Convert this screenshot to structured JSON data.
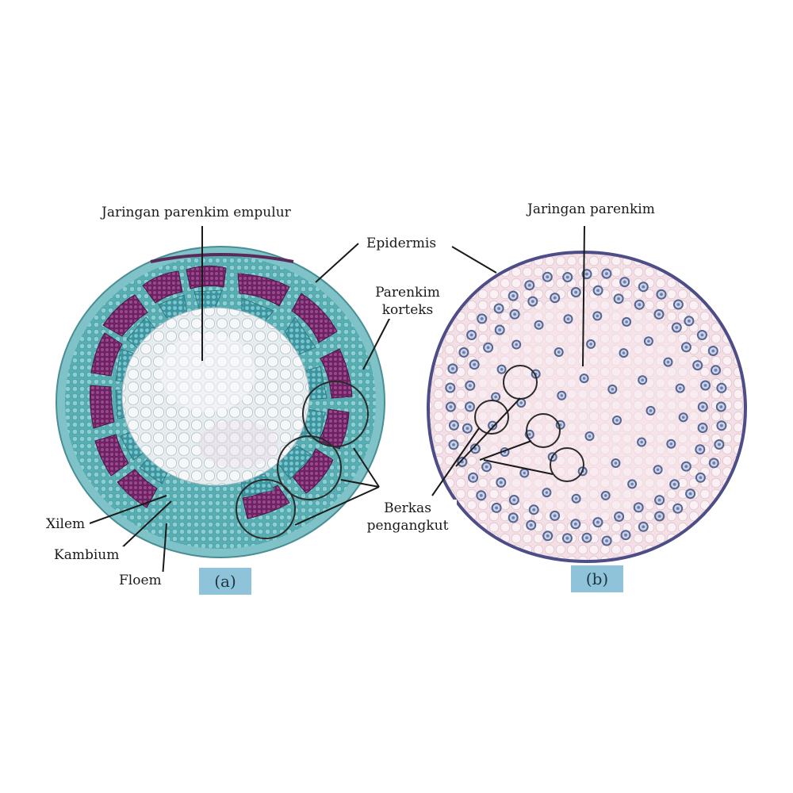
{
  "panel_a": {
    "tag": "(a)",
    "labels": {
      "pith": "Jaringan parenkim empulur",
      "epidermis": "Epidermis",
      "cortex_line1": "Parenkim",
      "cortex_line2": "korteks",
      "bundle_line1": "Berkas",
      "bundle_line2": "pengangkut",
      "xylem": "Xilem",
      "cambium": "Kambium",
      "phloem": "Floem"
    }
  },
  "panel_b": {
    "tag": "(b)",
    "labels": {
      "parenchyma": "Jaringan parenkim"
    }
  },
  "colors": {
    "cortex_teal": "#5fb3b8",
    "epidermis_teal": "#7fc3c8",
    "phloem_purple": "#7a2a6e",
    "xylem_teal": "#3d9aa6",
    "pith_cell": "#f2f4f6",
    "monocot_fill": "#f6e4e8",
    "monocot_bundle": "#5a6f9a",
    "tag_blue": "#8fc3da"
  }
}
